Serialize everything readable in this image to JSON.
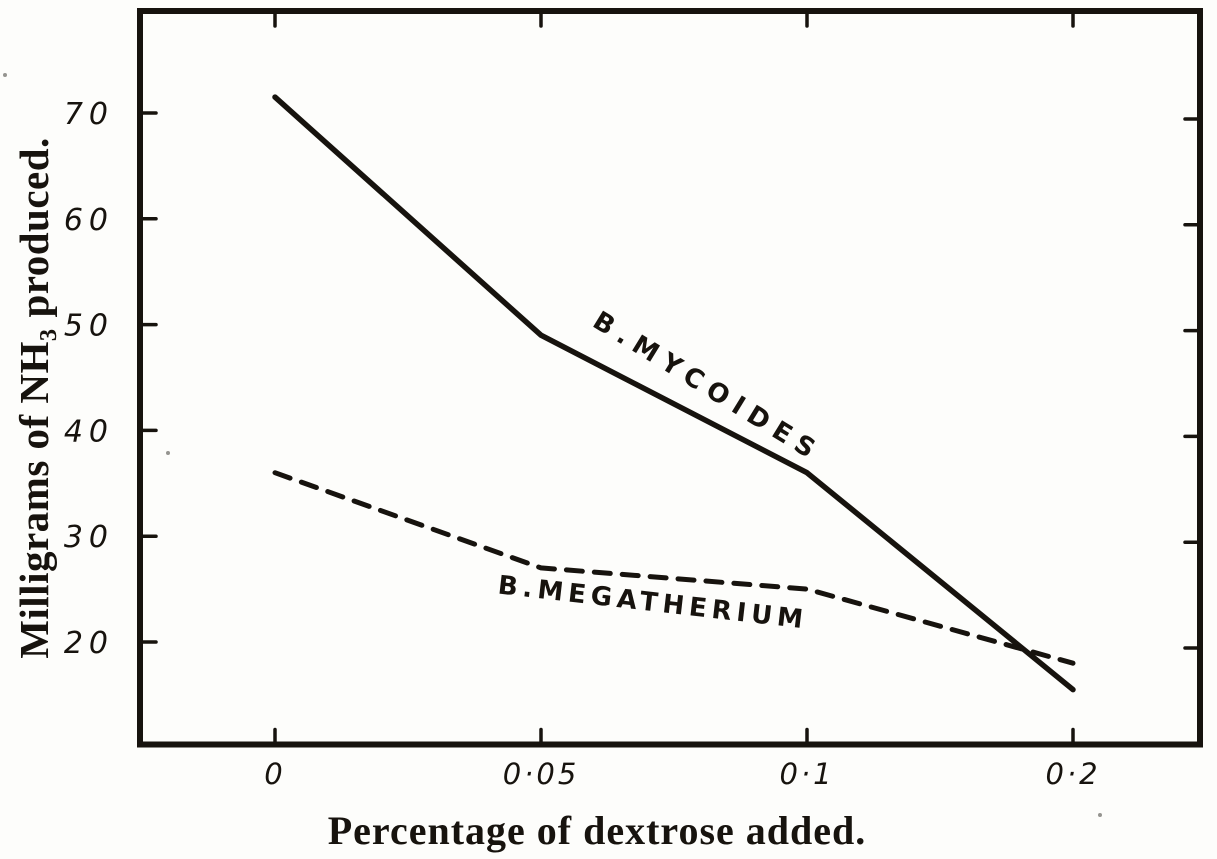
{
  "figure": {
    "background_color": "#fdfdfb",
    "ink_color": "#17130e"
  },
  "chart_data": {
    "type": "line",
    "title": "",
    "xlabel": "Percentage of dextrose added.",
    "ylabel": "Milligrams of NH₃ produced.",
    "x_values": [
      0,
      0.05,
      0.1,
      0.2
    ],
    "x_tick_labels": [
      "0",
      "0·05",
      "0·1",
      "0·2"
    ],
    "x_axis_note": "tick positions equally spaced although value steps are unequal",
    "y_ticks": [
      20,
      30,
      40,
      50,
      60,
      70
    ],
    "ylim": [
      10,
      80
    ],
    "grid": false,
    "legend_position": "labels drawn along the curves",
    "frame": "full box with inward tick nicks on all four sides",
    "series": [
      {
        "name": "B.MYCOIDES",
        "line_style": "solid",
        "values": [
          71.5,
          49,
          36,
          15.5
        ]
      },
      {
        "name": "B.MEGATHERIUM",
        "line_style": "dashed",
        "values": [
          36,
          27,
          25,
          18
        ]
      }
    ]
  }
}
